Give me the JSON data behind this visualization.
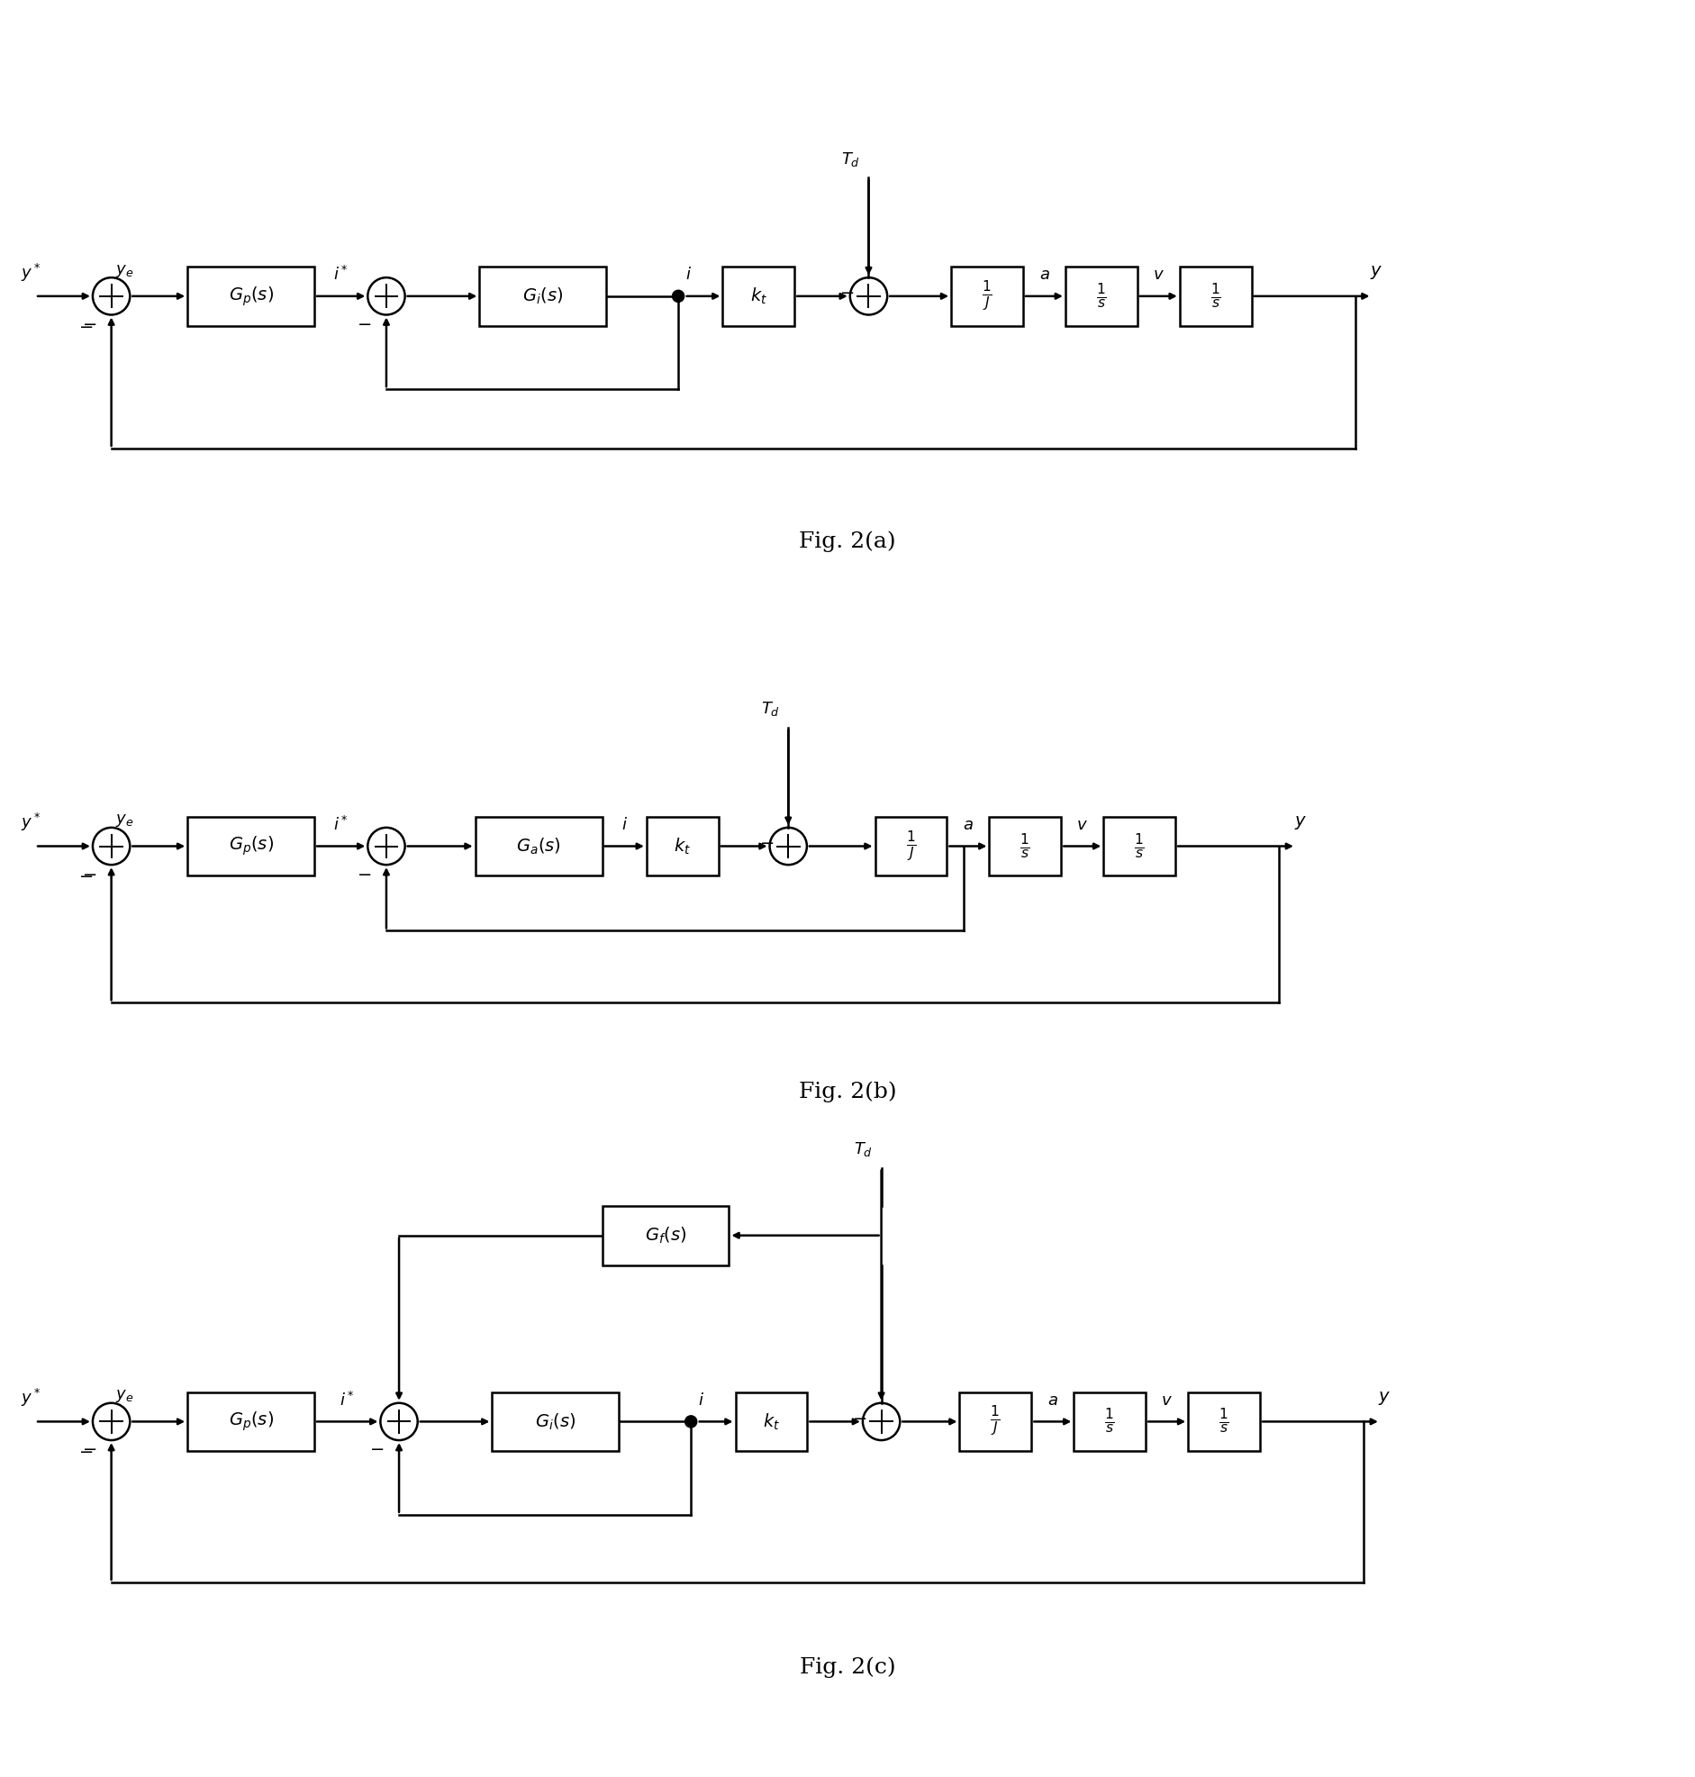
{
  "fig_labels": [
    "Fig. 2(a)",
    "Fig. 2(b)",
    "Fig. 2(c)"
  ],
  "background_color": "#ffffff",
  "line_color": "#000000",
  "font_size": 14,
  "label_font_size": 13,
  "fig_label_font_size": 18,
  "lw": 1.8,
  "bh": 0.7,
  "bw_large": 1.5,
  "bw_small": 0.85,
  "sum_r": 0.22
}
